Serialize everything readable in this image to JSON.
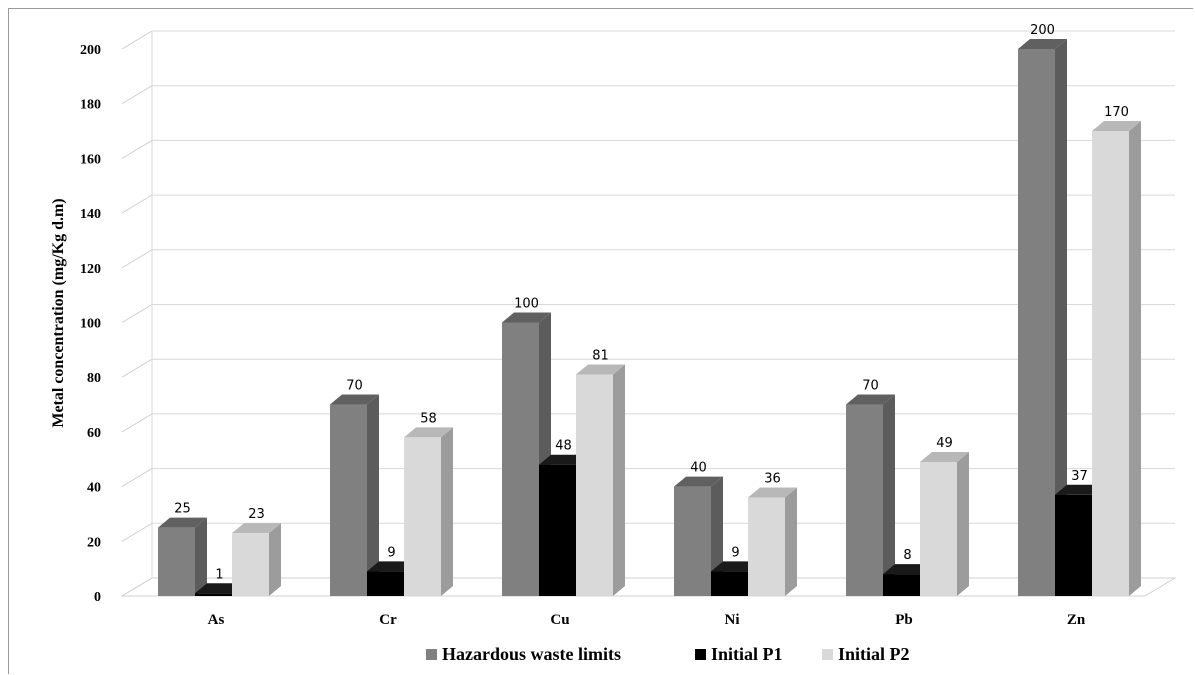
{
  "chart_data": {
    "type": "bar",
    "ylabel": "Metal concentration (mg/Kg d.m)",
    "xlabel": "",
    "ylim": [
      0,
      200
    ],
    "ytick_step": 20,
    "categories": [
      "As",
      "Cr",
      "Cu",
      "Ni",
      "Pb",
      "Zn"
    ],
    "series": [
      {
        "name": "Hazardous waste limits",
        "values": [
          25,
          70,
          100,
          40,
          70,
          200
        ],
        "color": "#808080"
      },
      {
        "name": "Initial P1",
        "values": [
          1,
          9,
          48,
          9,
          8,
          37
        ],
        "color": "#000000"
      },
      {
        "name": "Initial P2",
        "values": [
          23,
          58,
          81,
          36,
          49,
          170
        ],
        "color": "#d9d9d9"
      }
    ],
    "grid": true,
    "legend_position": "bottom",
    "style": "3d-clustered-column"
  }
}
